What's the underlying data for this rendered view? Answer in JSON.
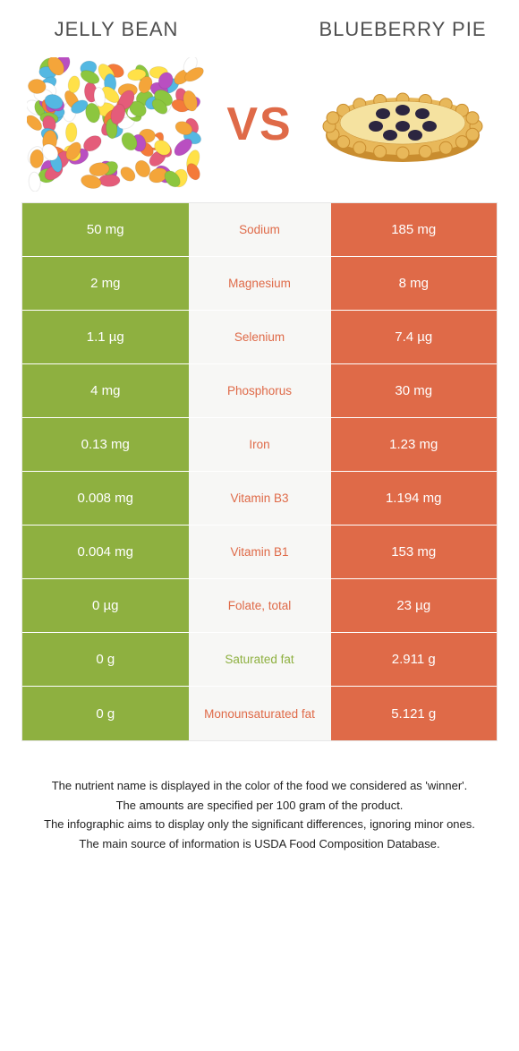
{
  "header": {
    "left_title": "Jelly bean",
    "right_title": "Blueberry pie",
    "vs": "VS"
  },
  "colors": {
    "left": "#8eb040",
    "right": "#df6a48",
    "mid_bg": "#f7f7f5",
    "border": "#e7e7e7"
  },
  "rows": [
    {
      "left": "50 mg",
      "label": "Sodium",
      "right": "185 mg",
      "winner": "right"
    },
    {
      "left": "2 mg",
      "label": "Magnesium",
      "right": "8 mg",
      "winner": "right"
    },
    {
      "left": "1.1 µg",
      "label": "Selenium",
      "right": "7.4 µg",
      "winner": "right"
    },
    {
      "left": "4 mg",
      "label": "Phosphorus",
      "right": "30 mg",
      "winner": "right"
    },
    {
      "left": "0.13 mg",
      "label": "Iron",
      "right": "1.23 mg",
      "winner": "right"
    },
    {
      "left": "0.008 mg",
      "label": "Vitamin B3",
      "right": "1.194 mg",
      "winner": "right"
    },
    {
      "left": "0.004 mg",
      "label": "Vitamin B1",
      "right": "153 mg",
      "winner": "right"
    },
    {
      "left": "0 µg",
      "label": "Folate, total",
      "right": "23 µg",
      "winner": "right"
    },
    {
      "left": "0 g",
      "label": "Saturated fat",
      "right": "2.911 g",
      "winner": "left"
    },
    {
      "left": "0 g",
      "label": "Monounsaturated fat",
      "right": "5.121 g",
      "winner": "right"
    }
  ],
  "footer": {
    "line1": "The nutrient name is displayed in the color of the food we considered as 'winner'.",
    "line2": "The amounts are specified per 100 gram of the product.",
    "line3": "The infographic aims to display only the significant differences, ignoring minor ones.",
    "line4": "The main source of information is USDA Food Composition Database."
  },
  "jelly_colors": [
    "#f4a53a",
    "#8cc63f",
    "#f47a3a",
    "#ffe148",
    "#54b8e2",
    "#e45c7a",
    "#b94fc1",
    "#ffffff"
  ],
  "pie": {
    "crust": "#e8b85a",
    "crust_edge": "#c98d2f",
    "top": "#f5e2a0",
    "berry": "#2c2540"
  }
}
